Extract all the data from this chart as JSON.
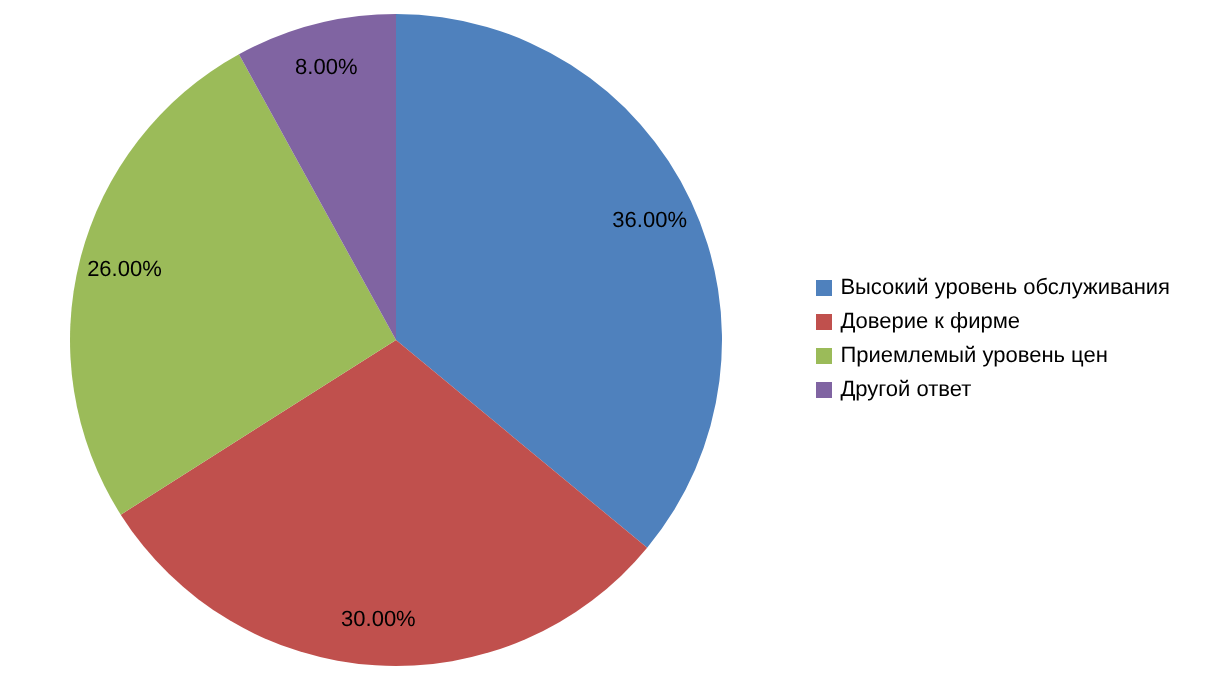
{
  "chart_data": {
    "type": "pie",
    "categories": [
      "Высокий уровень обслуживания",
      "Доверие к фирме",
      "Приемлемый уровень цен",
      "Другой ответ"
    ],
    "values": [
      36,
      30,
      26,
      8
    ],
    "colors": [
      "#4f81bd",
      "#c0504d",
      "#9bbb59",
      "#8064a2"
    ],
    "value_labels": [
      "36.00%",
      "30.00%",
      "26.00%",
      "8.00%"
    ],
    "legend": "right"
  }
}
